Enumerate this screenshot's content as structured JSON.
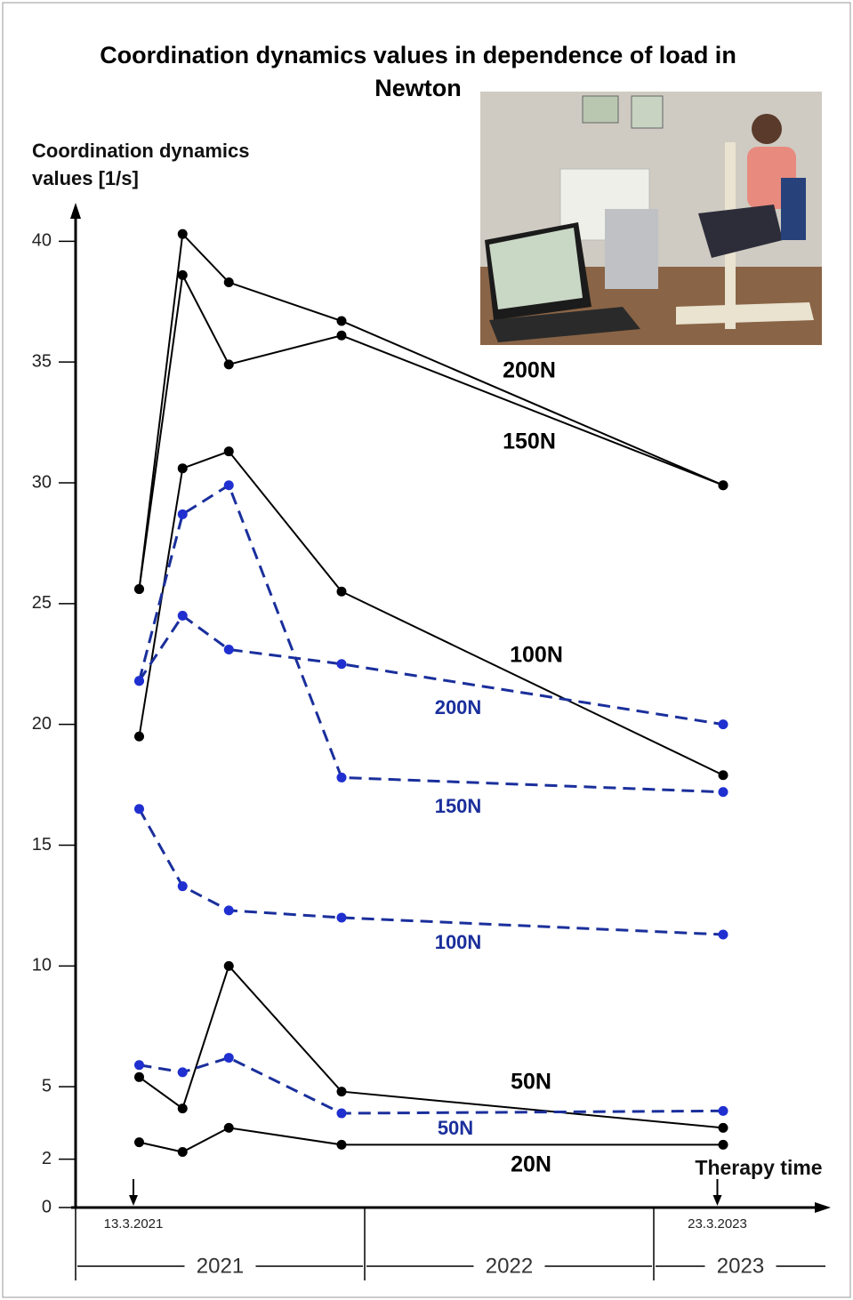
{
  "chart_data": {
    "type": "line",
    "title": "Coordination dynamics values in dependence of load in Newton",
    "y_label": "Coordination dynamics values [1/s]",
    "x_label": "Therapy time",
    "x": [
      2021.22,
      2021.37,
      2021.53,
      2021.92,
      2023.24
    ],
    "xlim": [
      2021,
      2023.6
    ],
    "xticks": [
      {
        "value": 2021.2,
        "label": "13.3.2021"
      },
      {
        "value": 2023.22,
        "label": "23.3.2023"
      }
    ],
    "periods": [
      {
        "label": "2021",
        "start": 2021,
        "end": 2022
      },
      {
        "label": "2022",
        "start": 2022,
        "end": 2023
      },
      {
        "label": "2023",
        "start": 2023,
        "end": 2023.6
      }
    ],
    "ylim": [
      0,
      42
    ],
    "yticks": [
      0,
      2,
      5,
      10,
      15,
      20,
      25,
      30,
      35,
      40
    ],
    "series": [
      {
        "name": "200N",
        "color": "#000000",
        "style": "solid",
        "values": [
          25.6,
          40.3,
          38.3,
          36.7,
          29.9
        ]
      },
      {
        "name": "150N",
        "color": "#000000",
        "style": "solid",
        "values": [
          25.6,
          38.6,
          34.9,
          36.1,
          29.9
        ]
      },
      {
        "name": "100N",
        "color": "#000000",
        "style": "solid",
        "values": [
          19.5,
          30.6,
          31.3,
          25.5,
          17.9
        ]
      },
      {
        "name": "50N",
        "color": "#000000",
        "style": "solid",
        "values": [
          5.4,
          4.1,
          10.0,
          4.8,
          3.3
        ]
      },
      {
        "name": "20N",
        "color": "#000000",
        "style": "solid",
        "values": [
          2.7,
          2.3,
          3.3,
          2.6,
          2.6
        ]
      },
      {
        "name": "200N",
        "color": "#1a2f9c",
        "style": "dashed",
        "values": [
          21.8,
          24.5,
          23.1,
          22.5,
          20.0
        ]
      },
      {
        "name": "150N",
        "color": "#1a2f9c",
        "style": "dashed",
        "values": [
          21.8,
          28.7,
          29.9,
          17.8,
          17.2
        ]
      },
      {
        "name": "100N",
        "color": "#1a2f9c",
        "style": "dashed",
        "values": [
          16.5,
          13.3,
          12.3,
          12.0,
          11.3
        ]
      },
      {
        "name": "50N",
        "color": "#1a2f9c",
        "style": "dashed",
        "values": [
          5.9,
          5.6,
          6.2,
          3.9,
          4.0
        ]
      }
    ]
  }
}
